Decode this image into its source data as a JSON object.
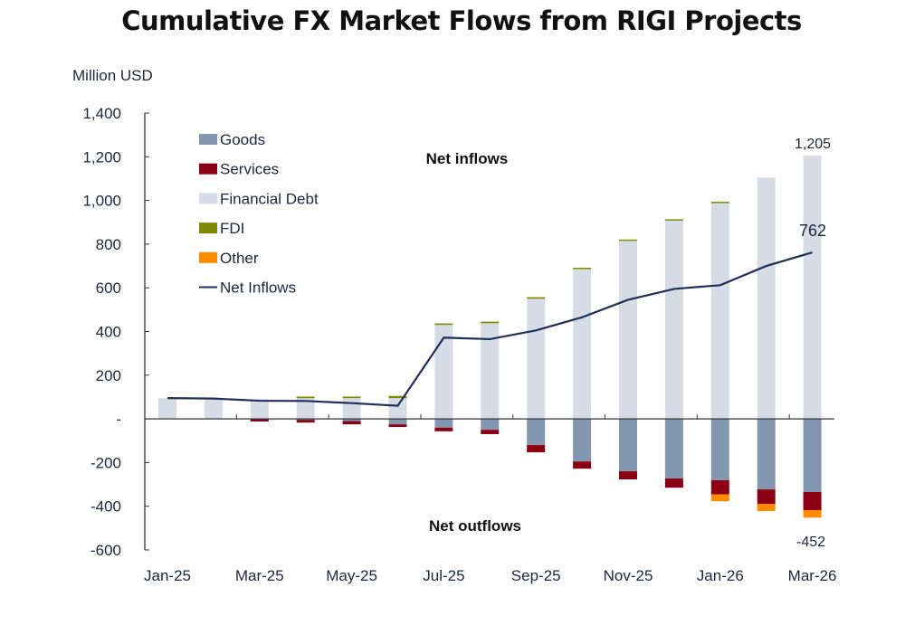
{
  "chart_data": {
    "type": "bar",
    "subtype": "stacked bar with line",
    "title": "Cumulative FX Market Flows from RIGI Projects",
    "ylabel": "Million USD",
    "xlabel": "",
    "ylim": [
      -600,
      1400
    ],
    "yticks": [
      1400,
      1200,
      1000,
      800,
      600,
      400,
      200,
      0,
      -200,
      -400,
      -600
    ],
    "ytick_labels": [
      "1,400",
      "1,200",
      "1,000",
      "800",
      "600",
      "400",
      "200",
      "-",
      "-200",
      "-400",
      "-600"
    ],
    "categories": [
      "Jan-25",
      "Feb-25",
      "Mar-25",
      "Apr-25",
      "May-25",
      "Jun-25",
      "Jul-25",
      "Aug-25",
      "Sep-25",
      "Oct-25",
      "Nov-25",
      "Dec-25",
      "Jan-26",
      "Feb-26",
      "Mar-26"
    ],
    "xtick_labels": [
      "Jan-25",
      "Mar-25",
      "May-25",
      "Jul-25",
      "Sep-25",
      "Nov-25",
      "Jan-26",
      "Mar-26"
    ],
    "legend_position": "top-left",
    "series": [
      {
        "name": "Goods",
        "color": "#8497b0",
        "values": [
          0,
          0,
          -2,
          -5,
          -10,
          -25,
          -40,
          -50,
          -120,
          -195,
          -240,
          -273,
          -281,
          -323,
          -335
        ]
      },
      {
        "name": "Services",
        "color": "#8b0012",
        "values": [
          0,
          0,
          -10,
          -12,
          -15,
          -12,
          -17,
          -20,
          -33,
          -33,
          -37,
          -42,
          -65,
          -67,
          -83
        ]
      },
      {
        "name": "Financial Debt",
        "color": "#d6dce5",
        "values": [
          95,
          95,
          90,
          95,
          95,
          95,
          430,
          438,
          550,
          686,
          815,
          908,
          988,
          1105,
          1205
        ]
      },
      {
        "name": "FDI",
        "color": "#7f8a00",
        "values": [
          0,
          0,
          0,
          7,
          7,
          10,
          7,
          7,
          7,
          6,
          6,
          6,
          6,
          0,
          0
        ]
      },
      {
        "name": "Other",
        "color": "#ff8c00",
        "values": [
          0,
          0,
          0,
          0,
          0,
          0,
          0,
          0,
          0,
          0,
          0,
          0,
          -31,
          -32,
          -34
        ]
      },
      {
        "name": "Net Inflows",
        "type": "line",
        "color": "#1f2f5a",
        "values": [
          95,
          93,
          83,
          82,
          72,
          60,
          372,
          365,
          405,
          465,
          545,
          595,
          612,
          700,
          762
        ]
      }
    ],
    "annotations": [
      {
        "text": "Net inflows"
      },
      {
        "text": "Net outflows"
      }
    ],
    "data_labels": {
      "top_total": "1,205",
      "net_last": "762",
      "bottom_total": "-452"
    }
  }
}
